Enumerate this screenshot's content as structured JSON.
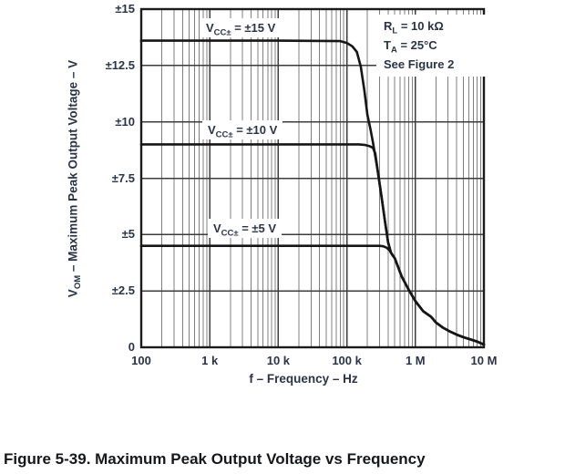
{
  "title_caption": "Figure 5-39. Maximum Peak Output Voltage vs Frequency",
  "colors": {
    "ink_text": "#2a3447",
    "curve": "#161616",
    "grid_minor": "#7f7f7f",
    "grid_major": "#3d3d3d",
    "border": "#1b1b1b",
    "background": "#ffffff"
  },
  "chart_data": {
    "type": "line",
    "title": "",
    "xlabel": "f – Frequency – Hz",
    "ylabel_base": "V",
    "ylabel_sub": "OM",
    "ylabel_rest": " – Maximum Peak Output Voltage – V",
    "xscale": "log",
    "xlim": [
      100,
      10000000
    ],
    "ylim": [
      0,
      15
    ],
    "ytick_step": 2.5,
    "grid": "on",
    "legend_position": "inline-labels",
    "xticks": [
      {
        "value": 100,
        "label": "100"
      },
      {
        "value": 1000,
        "label": "1 k"
      },
      {
        "value": 10000,
        "label": "10 k"
      },
      {
        "value": 100000,
        "label": "100 k"
      },
      {
        "value": 1000000,
        "label": "1 M"
      },
      {
        "value": 10000000,
        "label": "10 M"
      }
    ],
    "yticks": [
      {
        "value": 15,
        "label": "±15"
      },
      {
        "value": 12.5,
        "label": "±12.5"
      },
      {
        "value": 10,
        "label": "±10"
      },
      {
        "value": 7.5,
        "label": "±7.5"
      },
      {
        "value": 5,
        "label": "±5"
      },
      {
        "value": 2.5,
        "label": "±2.5"
      },
      {
        "value": 0,
        "label": "0"
      }
    ],
    "conditions": [
      {
        "base": "R",
        "sub": "L",
        "rest": " = 10 kΩ"
      },
      {
        "base": "T",
        "sub": "A",
        "rest": " = 25°C"
      },
      {
        "text": "See Figure 2"
      }
    ],
    "series": [
      {
        "name": "VCC± = ±15 V",
        "label_base": "V",
        "label_sub": "CC±",
        "label_rest": " = ±15 V",
        "flat_level_v": 13.6,
        "points": [
          [
            100,
            13.6
          ],
          [
            10000,
            13.6
          ],
          [
            80000,
            13.58
          ],
          [
            100000,
            13.5
          ],
          [
            120000,
            13.35
          ],
          [
            140000,
            13.1
          ],
          [
            160000,
            12.45
          ],
          [
            180000,
            11.4
          ],
          [
            200000,
            10.3
          ],
          [
            220000,
            9.7
          ],
          [
            240000,
            9.1
          ],
          [
            280000,
            7.9
          ],
          [
            320000,
            6.7
          ],
          [
            360000,
            5.6
          ],
          [
            400000,
            4.65
          ],
          [
            440000,
            4.2
          ],
          [
            500000,
            3.95
          ],
          [
            630000,
            3.15
          ],
          [
            800000,
            2.55
          ],
          [
            1000000,
            2.05
          ],
          [
            1300000,
            1.6
          ],
          [
            1700000,
            1.35
          ],
          [
            2000000,
            1.1
          ],
          [
            2500000,
            0.88
          ],
          [
            3200000,
            0.7
          ],
          [
            4000000,
            0.56
          ],
          [
            5000000,
            0.45
          ],
          [
            6300000,
            0.35
          ],
          [
            8000000,
            0.25
          ],
          [
            10000000,
            0.12
          ]
        ]
      },
      {
        "name": "VCC± = ±10 V",
        "label_base": "V",
        "label_sub": "CC±",
        "label_rest": " = ±10 V",
        "flat_level_v": 9.0,
        "points": [
          [
            100,
            9.0
          ],
          [
            10000,
            9.0
          ],
          [
            100000,
            9.0
          ],
          [
            150000,
            9.0
          ],
          [
            180000,
            8.98
          ],
          [
            210000,
            8.93
          ],
          [
            240000,
            8.85
          ],
          [
            260000,
            8.6
          ],
          [
            280000,
            7.9
          ],
          [
            320000,
            6.7
          ],
          [
            360000,
            5.6
          ],
          [
            400000,
            4.65
          ],
          [
            440000,
            4.2
          ],
          [
            500000,
            3.95
          ],
          [
            630000,
            3.15
          ],
          [
            800000,
            2.55
          ],
          [
            1000000,
            2.05
          ],
          [
            1300000,
            1.6
          ],
          [
            1700000,
            1.35
          ],
          [
            2000000,
            1.1
          ],
          [
            2500000,
            0.88
          ],
          [
            3200000,
            0.7
          ],
          [
            4000000,
            0.56
          ],
          [
            5000000,
            0.45
          ],
          [
            6300000,
            0.35
          ],
          [
            8000000,
            0.25
          ],
          [
            10000000,
            0.12
          ]
        ]
      },
      {
        "name": "VCC± = ±5 V",
        "label_base": "V",
        "label_sub": "CC±",
        "label_rest": " = ±5 V",
        "flat_level_v": 4.5,
        "points": [
          [
            100,
            4.5
          ],
          [
            10000,
            4.5
          ],
          [
            100000,
            4.5
          ],
          [
            200000,
            4.5
          ],
          [
            300000,
            4.5
          ],
          [
            340000,
            4.48
          ],
          [
            380000,
            4.42
          ],
          [
            420000,
            4.3
          ],
          [
            460000,
            4.1
          ],
          [
            500000,
            3.95
          ],
          [
            630000,
            3.15
          ],
          [
            800000,
            2.55
          ],
          [
            1000000,
            2.05
          ],
          [
            1300000,
            1.6
          ],
          [
            1700000,
            1.35
          ],
          [
            2000000,
            1.1
          ],
          [
            2500000,
            0.88
          ],
          [
            3200000,
            0.7
          ],
          [
            4000000,
            0.56
          ],
          [
            5000000,
            0.45
          ],
          [
            6300000,
            0.35
          ],
          [
            8000000,
            0.25
          ],
          [
            10000000,
            0.12
          ]
        ]
      }
    ]
  }
}
